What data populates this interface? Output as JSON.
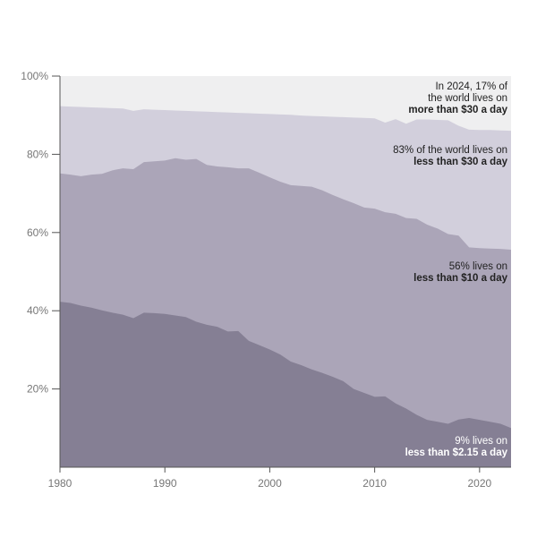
{
  "chart_data": {
    "type": "area",
    "stacked": true,
    "title": "",
    "xlabel": "",
    "ylabel": "",
    "xlim": [
      1980,
      2023
    ],
    "ylim": [
      0,
      100
    ],
    "grid": false,
    "x_ticks": [
      1980,
      1990,
      2000,
      2010,
      2020
    ],
    "y_ticks": [
      20,
      40,
      60,
      80,
      100
    ],
    "y_tick_labels": [
      "20%",
      "40%",
      "60%",
      "80%",
      "100%"
    ],
    "x": [
      1980,
      1981,
      1982,
      1983,
      1984,
      1985,
      1986,
      1987,
      1988,
      1989,
      1990,
      1991,
      1992,
      1993,
      1994,
      1995,
      1996,
      1997,
      1998,
      1999,
      2000,
      2001,
      2002,
      2003,
      2004,
      2005,
      2006,
      2007,
      2008,
      2009,
      2010,
      2011,
      2012,
      2013,
      2014,
      2015,
      2016,
      2017,
      2018,
      2019,
      2020,
      2021,
      2022,
      2023
    ],
    "series": [
      {
        "key": "below_2_15",
        "color": "#857f94",
        "values": [
          42.3,
          42.0,
          41.3,
          40.8,
          40.1,
          39.5,
          39.0,
          38.1,
          39.5,
          39.4,
          39.2,
          38.8,
          38.4,
          37.2,
          36.4,
          35.9,
          34.7,
          34.8,
          32.3,
          31.2,
          30.1,
          28.8,
          27.0,
          26.1,
          25.0,
          24.1,
          23.1,
          22.0,
          20.0,
          19.0,
          18.0,
          18.1,
          16.3,
          15.0,
          13.4,
          12.1,
          11.6,
          11.1,
          12.2,
          12.6,
          12.1,
          11.6,
          11.1,
          10.0
        ]
      },
      {
        "key": "below_10",
        "color": "#aba5b8",
        "values": [
          75.1,
          74.8,
          74.4,
          74.8,
          75.0,
          75.9,
          76.4,
          76.2,
          78.0,
          78.2,
          78.4,
          79.0,
          78.6,
          78.8,
          77.3,
          76.9,
          76.7,
          76.4,
          76.4,
          75.3,
          74.1,
          73.0,
          72.1,
          71.9,
          71.7,
          70.8,
          69.6,
          68.5,
          67.5,
          66.4,
          66.1,
          65.2,
          64.8,
          63.7,
          63.5,
          62.0,
          61.0,
          59.6,
          59.2,
          56.2,
          56.0,
          55.9,
          55.8,
          55.6
        ]
      },
      {
        "key": "below_30",
        "color": "#d2cfdc",
        "values": [
          92.3,
          92.2,
          92.1,
          92.0,
          91.9,
          91.8,
          91.7,
          91.1,
          91.5,
          91.4,
          91.3,
          91.2,
          91.1,
          91.0,
          90.9,
          90.8,
          90.7,
          90.6,
          90.5,
          90.4,
          90.3,
          90.2,
          90.1,
          89.9,
          89.8,
          89.7,
          89.6,
          89.5,
          89.4,
          89.3,
          89.2,
          88.1,
          89.0,
          87.8,
          88.9,
          88.9,
          88.8,
          88.7,
          87.3,
          86.3,
          86.2,
          86.2,
          86.1,
          86.0
        ]
      },
      {
        "key": "above_30",
        "color": "#efeff0",
        "values": [
          100,
          100,
          100,
          100,
          100,
          100,
          100,
          100,
          100,
          100,
          100,
          100,
          100,
          100,
          100,
          100,
          100,
          100,
          100,
          100,
          100,
          100,
          100,
          100,
          100,
          100,
          100,
          100,
          100,
          100,
          100,
          100,
          100,
          100,
          100,
          100,
          100,
          100,
          100,
          100,
          100,
          100,
          100,
          100
        ]
      }
    ],
    "annotations": [
      {
        "lines": [
          {
            "text": "In 2024, 17% of",
            "bold": false
          },
          {
            "text": "the world lives on",
            "bold": false
          },
          {
            "text": "more than $30 a day",
            "bold": true
          }
        ],
        "color": "#222222"
      },
      {
        "lines": [
          {
            "text": "83% of the world lives on",
            "bold": false
          },
          {
            "text": "less than $30 a day",
            "bold": true
          }
        ],
        "color": "#222222"
      },
      {
        "lines": [
          {
            "text": "56% lives on",
            "bold": false
          },
          {
            "text": "less than $10 a day",
            "bold": true
          }
        ],
        "color": "#222222"
      },
      {
        "lines": [
          {
            "text": "9% lives on",
            "bold": false
          },
          {
            "text": "less than $2.15 a day",
            "bold": true
          }
        ],
        "color": "#ffffff"
      }
    ]
  }
}
